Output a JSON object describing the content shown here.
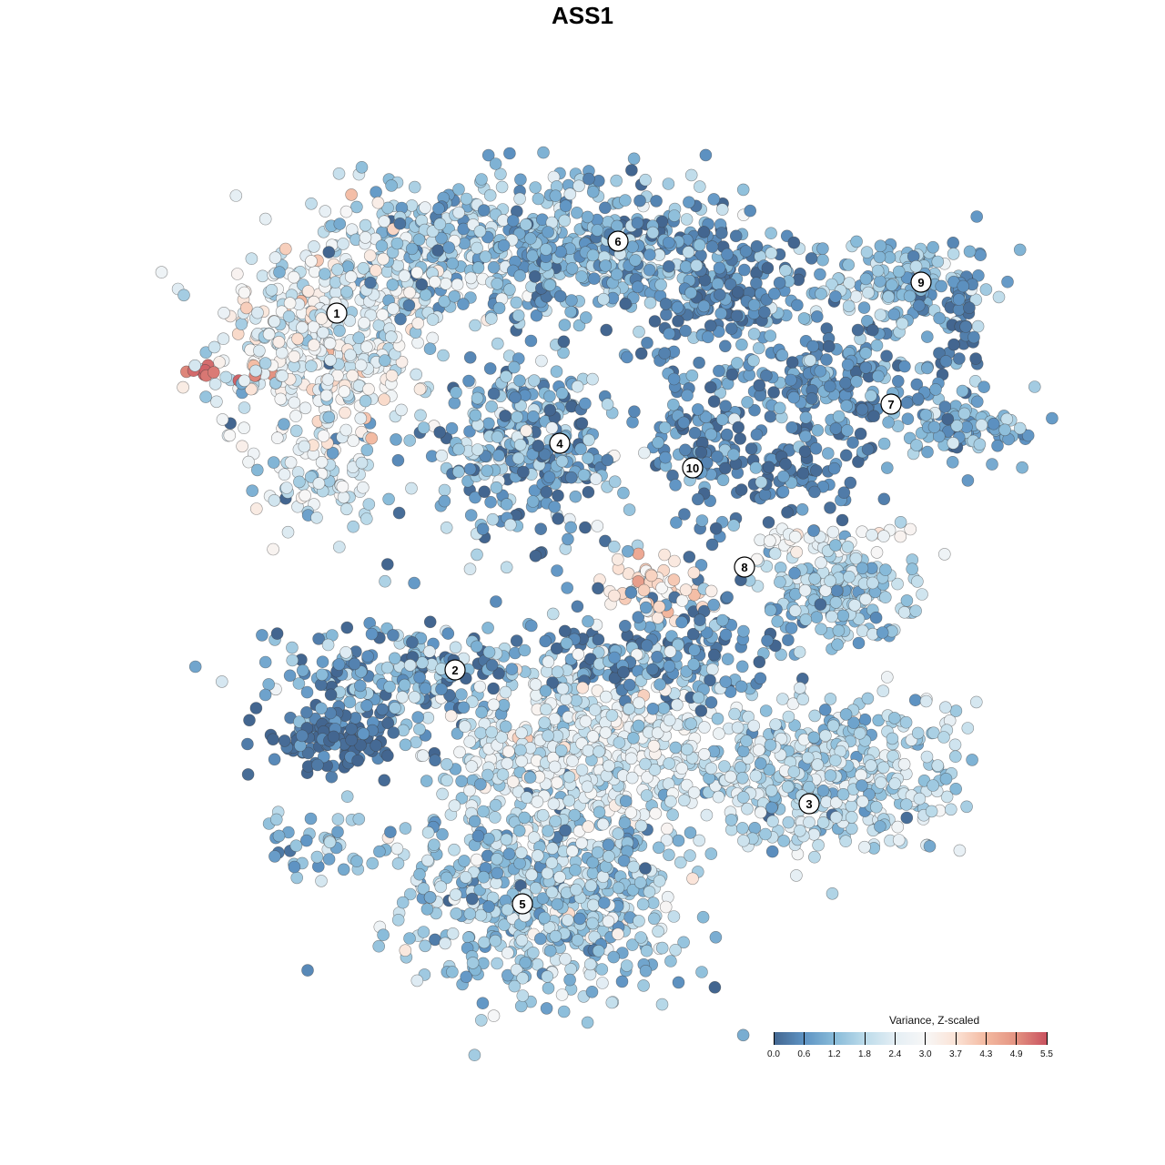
{
  "chart_data": {
    "type": "scatter",
    "title": "ASS1",
    "xlabel": "",
    "ylabel": "",
    "xlim": [
      -12.8,
      12.8
    ],
    "ylim": [
      -12.8,
      12.8
    ],
    "grid": false,
    "legend": {
      "title": "Variance, Z-scaled",
      "placement": "bottom-right",
      "ticks": [
        "0.0",
        "0.6",
        "1.2",
        "1.8",
        "2.4",
        "3.0",
        "3.7",
        "4.3",
        "4.9",
        "5.5"
      ],
      "range": [
        0,
        5.5
      ],
      "colors": [
        "#436690",
        "#5e93c3",
        "#88bbd9",
        "#bcdbea",
        "#e4eef4",
        "#f7f7f7",
        "#fbe3d6",
        "#f3b9a0",
        "#e39281",
        "#c9525f"
      ]
    },
    "cluster_labels": [
      {
        "label": "1",
        "x": -5.4,
        "y": 5.92
      },
      {
        "label": "6",
        "x": 0.78,
        "y": 7.5
      },
      {
        "label": "9",
        "x": 7.44,
        "y": 6.6
      },
      {
        "label": "7",
        "x": 6.78,
        "y": 3.92
      },
      {
        "label": "4",
        "x": -0.5,
        "y": 3.06
      },
      {
        "label": "10",
        "x": 2.42,
        "y": 2.52
      },
      {
        "label": "8",
        "x": 3.56,
        "y": 0.34
      },
      {
        "label": "2",
        "x": -2.8,
        "y": -1.92
      },
      {
        "label": "3",
        "x": 4.98,
        "y": -4.86
      },
      {
        "label": "5",
        "x": -1.32,
        "y": -7.06
      }
    ],
    "point_groups": [
      {
        "cx": -5.8,
        "cy": 5.2,
        "sx": 1.2,
        "sy": 1.1,
        "n": 400,
        "mean": 2.6,
        "sd": 0.7
      },
      {
        "cx": -5.8,
        "cy": 2.2,
        "sx": 0.7,
        "sy": 0.7,
        "n": 80,
        "mean": 2.2,
        "sd": 0.6
      },
      {
        "cx": -7.9,
        "cy": 4.6,
        "sx": 0.5,
        "sy": 0.1,
        "n": 12,
        "mean": 5.2,
        "sd": 0.2
      },
      {
        "cx": -3.4,
        "cy": 7.2,
        "sx": 1.4,
        "sy": 0.8,
        "n": 250,
        "mean": 1.8,
        "sd": 0.7
      },
      {
        "cx": 0.0,
        "cy": 7.4,
        "sx": 1.8,
        "sy": 0.8,
        "n": 450,
        "mean": 1.1,
        "sd": 0.6
      },
      {
        "cx": 3.0,
        "cy": 6.6,
        "sx": 0.9,
        "sy": 0.6,
        "n": 150,
        "mean": 0.4,
        "sd": 0.4
      },
      {
        "cx": 7.0,
        "cy": 6.6,
        "sx": 1.1,
        "sy": 0.5,
        "n": 150,
        "mean": 1.3,
        "sd": 0.5
      },
      {
        "cx": 8.4,
        "cy": 6.0,
        "sx": 0.2,
        "sy": 0.7,
        "n": 40,
        "mean": 0.3,
        "sd": 0.3
      },
      {
        "cx": 5.6,
        "cy": 4.4,
        "sx": 1.2,
        "sy": 0.7,
        "n": 200,
        "mean": 0.6,
        "sd": 0.5
      },
      {
        "cx": 8.4,
        "cy": 3.4,
        "sx": 0.8,
        "sy": 0.4,
        "n": 100,
        "mean": 1.1,
        "sd": 0.6
      },
      {
        "cx": -1.3,
        "cy": 3.0,
        "sx": 1.0,
        "sy": 0.9,
        "n": 300,
        "mean": 0.9,
        "sd": 0.8
      },
      {
        "cx": 2.6,
        "cy": 3.4,
        "sx": 0.7,
        "sy": 0.9,
        "n": 120,
        "mean": 0.5,
        "sd": 0.5
      },
      {
        "cx": 4.6,
        "cy": 2.4,
        "sx": 0.8,
        "sy": 0.5,
        "n": 80,
        "mean": 0.4,
        "sd": 0.4
      },
      {
        "cx": 5.8,
        "cy": -0.2,
        "sx": 0.8,
        "sy": 0.5,
        "n": 200,
        "mean": 1.5,
        "sd": 0.5
      },
      {
        "cx": 5.2,
        "cy": 0.9,
        "sx": 1.0,
        "sy": 0.2,
        "n": 40,
        "mean": 2.8,
        "sd": 0.4
      },
      {
        "cx": 1.6,
        "cy": -0.1,
        "sx": 0.6,
        "sy": 0.3,
        "n": 50,
        "mean": 3.5,
        "sd": 0.4
      },
      {
        "cx": -4.2,
        "cy": -2.0,
        "sx": 1.4,
        "sy": 0.6,
        "n": 200,
        "mean": 0.9,
        "sd": 0.7
      },
      {
        "cx": -5.4,
        "cy": -3.4,
        "sx": 0.7,
        "sy": 0.4,
        "n": 120,
        "mean": 0.2,
        "sd": 0.3
      },
      {
        "cx": 1.6,
        "cy": -1.6,
        "sx": 1.4,
        "sy": 0.6,
        "n": 200,
        "mean": 0.6,
        "sd": 0.6
      },
      {
        "cx": 0.0,
        "cy": -3.6,
        "sx": 1.6,
        "sy": 0.9,
        "n": 500,
        "mean": 2.3,
        "sd": 0.6
      },
      {
        "cx": 5.2,
        "cy": -4.2,
        "sx": 1.6,
        "sy": 0.9,
        "n": 450,
        "mean": 1.8,
        "sd": 0.6
      },
      {
        "cx": -0.8,
        "cy": -6.8,
        "sx": 1.6,
        "sy": 1.1,
        "n": 600,
        "mean": 1.5,
        "sd": 0.6
      },
      {
        "cx": -5.8,
        "cy": -5.8,
        "sx": 0.8,
        "sy": 0.3,
        "n": 40,
        "mean": 1.3,
        "sd": 0.6
      },
      {
        "cx": 0.0,
        "cy": 0.8,
        "sx": 3.0,
        "sy": 1.2,
        "n": 40,
        "mean": 1.0,
        "sd": 1.0
      }
    ]
  }
}
